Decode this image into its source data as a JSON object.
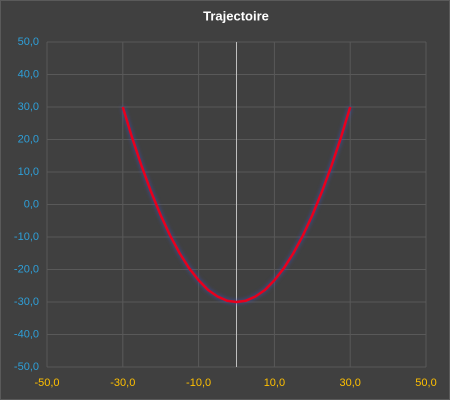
{
  "chart_data": {
    "type": "line",
    "title": "Trajectoire",
    "x": [
      -30,
      -27.5,
      -25,
      -22.5,
      -20,
      -17.5,
      -15,
      -12.5,
      -10,
      -7.5,
      -5,
      -2.5,
      0,
      2.5,
      5,
      7.5,
      10,
      12.5,
      15,
      17.5,
      20,
      22.5,
      25,
      27.5,
      30
    ],
    "series": [
      {
        "color": "#e8001c",
        "values": [
          30,
          20.4,
          11.7,
          3.8,
          -3.3,
          -9.6,
          -15,
          -19.6,
          -23.3,
          -26.3,
          -28.3,
          -29.6,
          -30,
          -29.6,
          -28.3,
          -26.3,
          -23.3,
          -19.6,
          -15,
          -9.6,
          -3.3,
          3.8,
          11.7,
          20.4,
          30
        ]
      }
    ],
    "xlim": [
      -50,
      50
    ],
    "xticks": [
      {
        "value": -50,
        "label": "-50,0"
      },
      {
        "value": -30,
        "label": "-30,0"
      },
      {
        "value": -10,
        "label": "-10,0"
      },
      {
        "value": 10,
        "label": "10,0"
      },
      {
        "value": 30,
        "label": "30,0"
      },
      {
        "value": 50,
        "label": "50,0"
      }
    ],
    "ylim": [
      -50,
      50
    ],
    "yticks": [
      {
        "value": -50,
        "label": "-50,0"
      },
      {
        "value": -40,
        "label": "-40,0"
      },
      {
        "value": -30,
        "label": "-30,0"
      },
      {
        "value": -20,
        "label": "-20,0"
      },
      {
        "value": -10,
        "label": "-10,0"
      },
      {
        "value": 0,
        "label": "0,0"
      },
      {
        "value": 10,
        "label": "10,0"
      },
      {
        "value": 20,
        "label": "20,0"
      },
      {
        "value": 30,
        "label": "30,0"
      },
      {
        "value": 40,
        "label": "40,0"
      },
      {
        "value": 50,
        "label": "50,0"
      }
    ],
    "grid": true,
    "xtick_color": "#ffc000",
    "ytick_color": "#2e9fd8"
  }
}
